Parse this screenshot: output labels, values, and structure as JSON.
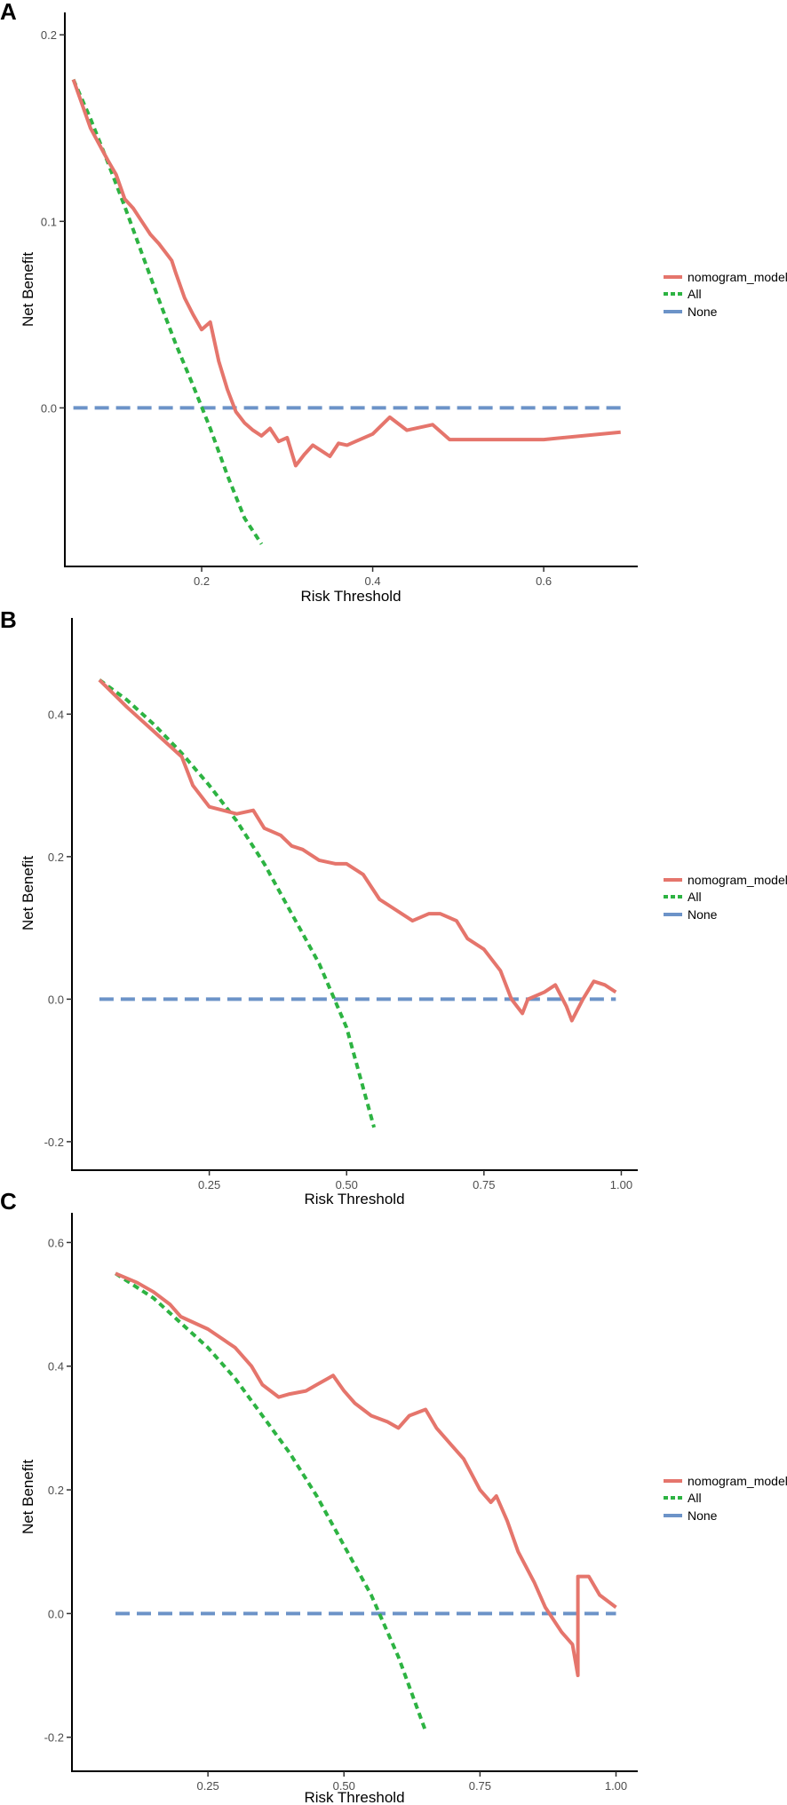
{
  "colors": {
    "model": "#E5756C",
    "all": "#2DB342",
    "none": "#6C93C8",
    "axis": "#000000",
    "tick_text": "#4D4D4D"
  },
  "legend": {
    "model_label": "nomogram_model",
    "all_label": "All",
    "none_label": "None"
  },
  "chart_data": [
    {
      "type": "line",
      "panel_label": "A",
      "xlabel": "Risk Threshold",
      "ylabel": "Net Benefit",
      "xlim": [
        0.04,
        0.71
      ],
      "ylim": [
        -0.085,
        0.212
      ],
      "xticks": [
        0.2,
        0.4,
        0.6
      ],
      "xtick_labels": [
        "0.2",
        "0.4",
        "0.6"
      ],
      "yticks": [
        0.0,
        0.1,
        0.2
      ],
      "ytick_labels": [
        "0.0",
        "0.1",
        "0.2"
      ],
      "series": [
        {
          "name": "nomogram_model",
          "x": [
            0.05,
            0.07,
            0.09,
            0.1,
            0.11,
            0.12,
            0.13,
            0.14,
            0.15,
            0.16,
            0.165,
            0.17,
            0.18,
            0.19,
            0.2,
            0.21,
            0.22,
            0.23,
            0.24,
            0.25,
            0.26,
            0.27,
            0.28,
            0.29,
            0.3,
            0.31,
            0.32,
            0.33,
            0.35,
            0.36,
            0.37,
            0.38,
            0.4,
            0.42,
            0.44,
            0.47,
            0.49,
            0.6,
            0.69
          ],
          "y": [
            0.176,
            0.15,
            0.133,
            0.125,
            0.112,
            0.107,
            0.1,
            0.093,
            0.088,
            0.082,
            0.079,
            0.072,
            0.059,
            0.05,
            0.042,
            0.046,
            0.025,
            0.01,
            -0.002,
            -0.008,
            -0.012,
            -0.015,
            -0.011,
            -0.018,
            -0.016,
            -0.031,
            -0.025,
            -0.02,
            -0.026,
            -0.019,
            -0.02,
            -0.018,
            -0.014,
            -0.005,
            -0.012,
            -0.009,
            -0.017,
            -0.017,
            -0.013
          ]
        },
        {
          "name": "All",
          "x": [
            0.05,
            0.07,
            0.09,
            0.11,
            0.13,
            0.15,
            0.17,
            0.19,
            0.21,
            0.23,
            0.25,
            0.27
          ],
          "y": [
            0.176,
            0.155,
            0.132,
            0.108,
            0.083,
            0.058,
            0.034,
            0.012,
            -0.011,
            -0.036,
            -0.059,
            -0.073
          ]
        },
        {
          "name": "None",
          "x": [
            0.05,
            0.69
          ],
          "y": [
            0,
            0
          ]
        }
      ]
    },
    {
      "type": "line",
      "panel_label": "B",
      "xlabel": "Risk Threshold",
      "ylabel": "Net Benefit",
      "xlim": [
        0.0,
        1.03
      ],
      "ylim": [
        -0.24,
        0.535
      ],
      "xticks": [
        0.25,
        0.5,
        0.75,
        1.0
      ],
      "xtick_labels": [
        "0.25",
        "0.50",
        "0.75",
        "1.00"
      ],
      "yticks": [
        -0.2,
        0.0,
        0.2,
        0.4
      ],
      "ytick_labels": [
        "-0.2",
        "0.0",
        "0.2",
        "0.4"
      ],
      "series": [
        {
          "name": "nomogram_model",
          "x": [
            0.05,
            0.1,
            0.15,
            0.2,
            0.22,
            0.25,
            0.3,
            0.33,
            0.35,
            0.38,
            0.4,
            0.42,
            0.45,
            0.48,
            0.5,
            0.53,
            0.56,
            0.58,
            0.6,
            0.62,
            0.65,
            0.67,
            0.7,
            0.72,
            0.75,
            0.78,
            0.8,
            0.82,
            0.83,
            0.86,
            0.88,
            0.9,
            0.91,
            0.93,
            0.95,
            0.97,
            0.99
          ],
          "y": [
            0.448,
            0.41,
            0.375,
            0.34,
            0.3,
            0.27,
            0.26,
            0.265,
            0.24,
            0.23,
            0.215,
            0.21,
            0.195,
            0.19,
            0.19,
            0.175,
            0.14,
            0.13,
            0.12,
            0.11,
            0.12,
            0.12,
            0.11,
            0.085,
            0.07,
            0.04,
            0.0,
            -0.02,
            0.0,
            0.01,
            0.02,
            -0.01,
            -0.03,
            0.0,
            0.025,
            0.02,
            0.01
          ]
        },
        {
          "name": "All",
          "x": [
            0.05,
            0.1,
            0.15,
            0.2,
            0.25,
            0.3,
            0.35,
            0.4,
            0.45,
            0.5,
            0.55
          ],
          "y": [
            0.448,
            0.42,
            0.385,
            0.345,
            0.3,
            0.25,
            0.19,
            0.12,
            0.05,
            -0.04,
            -0.18
          ]
        },
        {
          "name": "None",
          "x": [
            0.05,
            0.99
          ],
          "y": [
            0,
            0
          ]
        }
      ]
    },
    {
      "type": "line",
      "panel_label": "C",
      "xlabel": "Risk Threshold",
      "ylabel": "Net Benefit",
      "xlim": [
        0.0,
        1.04
      ],
      "ylim": [
        -0.255,
        0.648
      ],
      "xticks": [
        0.25,
        0.5,
        0.75,
        1.0
      ],
      "xtick_labels": [
        "0.25",
        "0.50",
        "0.75",
        "1.00"
      ],
      "yticks": [
        -0.2,
        0.0,
        0.2,
        0.4,
        0.6
      ],
      "ytick_labels": [
        "-0.2",
        "0.0",
        "0.2",
        "0.4",
        "0.6"
      ],
      "series": [
        {
          "name": "nomogram_model",
          "x": [
            0.08,
            0.12,
            0.15,
            0.18,
            0.2,
            0.25,
            0.3,
            0.33,
            0.35,
            0.38,
            0.4,
            0.43,
            0.45,
            0.47,
            0.48,
            0.5,
            0.52,
            0.55,
            0.58,
            0.6,
            0.62,
            0.65,
            0.67,
            0.7,
            0.72,
            0.75,
            0.77,
            0.78,
            0.8,
            0.82,
            0.85,
            0.87,
            0.9,
            0.92,
            0.93,
            0.93,
            0.95,
            0.97,
            1.0
          ],
          "y": [
            0.55,
            0.535,
            0.52,
            0.5,
            0.48,
            0.46,
            0.43,
            0.4,
            0.37,
            0.35,
            0.355,
            0.36,
            0.37,
            0.38,
            0.385,
            0.36,
            0.34,
            0.32,
            0.31,
            0.3,
            0.32,
            0.33,
            0.3,
            0.27,
            0.25,
            0.2,
            0.18,
            0.19,
            0.15,
            0.1,
            0.05,
            0.01,
            -0.03,
            -0.05,
            -0.1,
            0.06,
            0.06,
            0.03,
            0.01
          ]
        },
        {
          "name": "All",
          "x": [
            0.08,
            0.15,
            0.2,
            0.25,
            0.3,
            0.35,
            0.4,
            0.45,
            0.5,
            0.55,
            0.6,
            0.65
          ],
          "y": [
            0.55,
            0.51,
            0.47,
            0.43,
            0.38,
            0.32,
            0.26,
            0.19,
            0.11,
            0.03,
            -0.07,
            -0.19
          ]
        },
        {
          "name": "None",
          "x": [
            0.08,
            1.0
          ],
          "y": [
            0,
            0
          ]
        }
      ]
    }
  ]
}
